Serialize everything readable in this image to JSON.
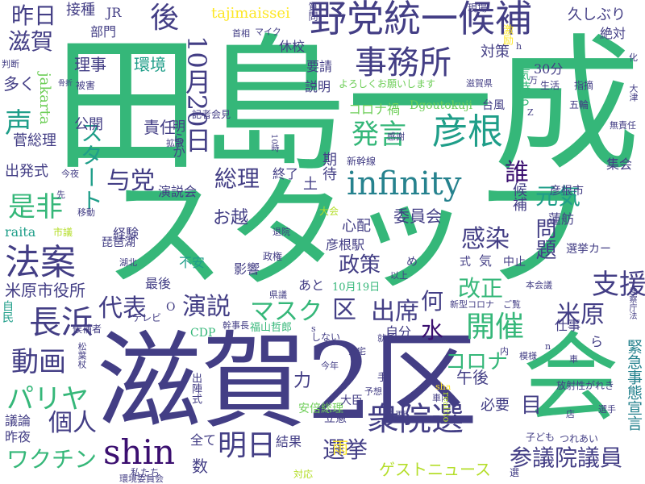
{
  "palette": {
    "c1": "#3b0f70",
    "c2": "#433e85",
    "c3": "#31688e",
    "c4": "#26828e",
    "c5": "#1f9e89",
    "c6": "#35b779",
    "c7": "#6ece58",
    "c8": "#b5de2b",
    "c9": "#fde725"
  },
  "words": [
    {
      "text": "田島一成",
      "color": "#35b779"
    },
    {
      "text": "スタッフ",
      "color": "#35b779"
    },
    {
      "text": "滋賀2区",
      "color": "#433e85"
    },
    {
      "text": "会",
      "color": "#35b779"
    },
    {
      "text": "野党統一候補",
      "color": "#433e85"
    },
    {
      "text": "事務所",
      "color": "#433e85"
    },
    {
      "text": "彦根",
      "color": "#1f9e89"
    },
    {
      "text": "infinity",
      "color": "#26828e"
    },
    {
      "text": "法案",
      "color": "#433e85"
    },
    {
      "text": "長浜",
      "color": "#433e85"
    },
    {
      "text": "衆院選",
      "color": "#433e85"
    },
    {
      "text": "明日",
      "color": "#433e85"
    },
    {
      "text": "shin",
      "color": "#3b0f70"
    },
    {
      "text": "開催",
      "color": "#35b779"
    },
    {
      "text": "10月20日",
      "color": "#433e85"
    },
    {
      "text": "発言",
      "color": "#35b779"
    },
    {
      "text": "後",
      "color": "#433e85"
    },
    {
      "text": "昨日",
      "color": "#433e85"
    },
    {
      "text": "滋賀",
      "color": "#433e85"
    },
    {
      "text": "声",
      "color": "#1f9e89"
    },
    {
      "text": "是非",
      "color": "#35b779"
    },
    {
      "text": "動画",
      "color": "#433e85"
    },
    {
      "text": "パリヤ",
      "color": "#35b779"
    },
    {
      "text": "ワクチン",
      "color": "#35b779"
    },
    {
      "text": "個人",
      "color": "#433e85"
    },
    {
      "text": "選挙",
      "color": "#433e85"
    },
    {
      "text": "参議院議員",
      "color": "#433e85"
    },
    {
      "text": "支援",
      "color": "#433e85"
    },
    {
      "text": "米原",
      "color": "#433e85"
    },
    {
      "text": "感染",
      "color": "#433e85"
    },
    {
      "text": "総理",
      "color": "#433e85"
    },
    {
      "text": "与党",
      "color": "#433e85"
    },
    {
      "text": "演説",
      "color": "#433e85"
    },
    {
      "text": "マスク",
      "color": "#35b779"
    },
    {
      "text": "区",
      "color": "#433e85"
    },
    {
      "text": "出席",
      "color": "#433e85"
    },
    {
      "text": "代表",
      "color": "#433e85"
    },
    {
      "text": "改正",
      "color": "#35b779"
    },
    {
      "text": "政策",
      "color": "#433e85"
    },
    {
      "text": "コロナ",
      "color": "#35b779"
    },
    {
      "text": "元気",
      "color": "#1f9e89"
    },
    {
      "text": "誰",
      "color": "#3b0f70"
    },
    {
      "text": "問題",
      "color": "#433e85"
    },
    {
      "text": "スタート",
      "color": "#1f9e89"
    },
    {
      "text": "何",
      "color": "#433e85"
    },
    {
      "text": "水",
      "color": "#3b0f70"
    },
    {
      "text": "目",
      "color": "#433e85"
    },
    {
      "text": "雨",
      "color": "#fde725"
    },
    {
      "text": "緊急事態宣言",
      "color": "#26828e"
    },
    {
      "text": "ゲストニュース",
      "color": "#b5de2b"
    },
    {
      "text": "tajimaissei",
      "color": "#fde725"
    },
    {
      "text": "接種",
      "color": "#433e85"
    },
    {
      "text": "JR",
      "color": "#433e85"
    },
    {
      "text": "部門",
      "color": "#433e85"
    },
    {
      "text": "休校",
      "color": "#433e85"
    },
    {
      "text": "要請",
      "color": "#433e85"
    },
    {
      "text": "対策",
      "color": "#433e85"
    },
    {
      "text": "久しぶり",
      "color": "#433e85"
    },
    {
      "text": "絶対",
      "color": "#433e85"
    },
    {
      "text": "30分",
      "color": "#433e85"
    },
    {
      "text": "理事",
      "color": "#433e85"
    },
    {
      "text": "環境",
      "color": "#1f9e89"
    },
    {
      "text": "説明",
      "color": "#433e85"
    },
    {
      "text": "よろしくお願いします",
      "color": "#6ece58"
    },
    {
      "text": "コロナ禍",
      "color": "#6ece58"
    },
    {
      "text": "Dgoutokuji",
      "color": "#6ece58"
    },
    {
      "text": "台風",
      "color": "#433e85"
    },
    {
      "text": "気持ち",
      "color": "#35b779"
    },
    {
      "text": "多く",
      "color": "#433e85"
    },
    {
      "text": "jakarta",
      "color": "#6ece58"
    },
    {
      "text": "公開",
      "color": "#433e85"
    },
    {
      "text": "責任",
      "color": "#433e85"
    },
    {
      "text": "菅総理",
      "color": "#433e85"
    },
    {
      "text": "明らか",
      "color": "#433e85"
    },
    {
      "text": "出発式",
      "color": "#433e85"
    },
    {
      "text": "演説会",
      "color": "#433e85"
    },
    {
      "text": "お越",
      "color": "#433e85"
    },
    {
      "text": "土",
      "color": "#433e85"
    },
    {
      "text": "終了",
      "color": "#433e85"
    },
    {
      "text": "期待",
      "color": "#433e85"
    },
    {
      "text": "候補",
      "color": "#433e85"
    },
    {
      "text": "彦根市",
      "color": "#433e85"
    },
    {
      "text": "集会",
      "color": "#433e85"
    },
    {
      "text": "委員会",
      "color": "#433e85"
    },
    {
      "text": "心配",
      "color": "#433e85"
    },
    {
      "text": "蓮舫",
      "color": "#433e85"
    },
    {
      "text": "彦根駅",
      "color": "#433e85"
    },
    {
      "text": "選挙カー",
      "color": "#433e85"
    },
    {
      "text": "raita",
      "color": "#1f9e89"
    },
    {
      "text": "経験",
      "color": "#433e85"
    },
    {
      "text": "不安",
      "color": "#1f9e89"
    },
    {
      "text": "影響",
      "color": "#433e85"
    },
    {
      "text": "最後",
      "color": "#433e85"
    },
    {
      "text": "あと",
      "color": "#433e85"
    },
    {
      "text": "中止",
      "color": "#433e85"
    },
    {
      "text": "10月19日",
      "color": "#35b779"
    },
    {
      "text": "米原市役所",
      "color": "#433e85"
    },
    {
      "text": "仕事",
      "color": "#433e85"
    },
    {
      "text": "自分",
      "color": "#433e85"
    },
    {
      "text": "午後",
      "color": "#433e85"
    },
    {
      "text": "力",
      "color": "#433e85"
    },
    {
      "text": "必要",
      "color": "#433e85"
    },
    {
      "text": "議論",
      "color": "#433e85"
    },
    {
      "text": "昨夜",
      "color": "#433e85"
    },
    {
      "text": "全て",
      "color": "#433e85"
    },
    {
      "text": "結果",
      "color": "#433e85"
    },
    {
      "text": "数",
      "color": "#433e85"
    },
    {
      "text": "安倍総理",
      "color": "#6ece58"
    },
    {
      "text": "大臣",
      "color": "#433e85"
    },
    {
      "text": "投票",
      "color": "#433e85"
    },
    {
      "text": "福山哲郎",
      "color": "#35b779"
    },
    {
      "text": "CDP",
      "color": "#35b779"
    },
    {
      "text": "琵琶湖",
      "color": "#433e85"
    },
    {
      "text": "立憲",
      "color": "#433e85"
    },
    {
      "text": "新幹線",
      "color": "#433e85"
    },
    {
      "text": "記者会見",
      "color": "#433e85"
    },
    {
      "text": "放射性がれき",
      "color": "#433e85"
    },
    {
      "text": "五輪",
      "color": "#433e85"
    },
    {
      "text": "私たち",
      "color": "#433e85"
    },
    {
      "text": "環境委員会",
      "color": "#433e85"
    },
    {
      "text": "対応",
      "color": "#b5de2b"
    },
    {
      "text": "子ども",
      "color": "#433e85"
    },
    {
      "text": "つれあい",
      "color": "#433e85"
    },
    {
      "text": "選",
      "color": "#433e85"
    },
    {
      "text": "被害",
      "color": "#433e85"
    },
    {
      "text": "現場",
      "color": "#433e85"
    },
    {
      "text": "首相",
      "color": "#433e85"
    },
    {
      "text": "マイク",
      "color": "#433e85"
    },
    {
      "text": "激励",
      "color": "#fde725"
    },
    {
      "text": "生活",
      "color": "#433e85"
    },
    {
      "text": "指摘",
      "color": "#433e85"
    },
    {
      "text": "滋賀県",
      "color": "#433e85"
    },
    {
      "text": "質問",
      "color": "#433e85"
    },
    {
      "text": "判断",
      "color": "#433e85"
    },
    {
      "text": "新型コロナ",
      "color": "#433e85"
    },
    {
      "text": "本会議",
      "color": "#433e85"
    },
    {
      "text": "幹事長",
      "color": "#433e85"
    },
    {
      "text": "テレビ",
      "color": "#433e85"
    },
    {
      "text": "候補者",
      "color": "#433e85"
    },
    {
      "text": "自民",
      "color": "#1f9e89"
    },
    {
      "text": "しない",
      "color": "#433e85"
    },
    {
      "text": "今年",
      "color": "#433e85"
    },
    {
      "text": "移動",
      "color": "#433e85"
    },
    {
      "text": "退院",
      "color": "#433e85"
    },
    {
      "text": "市議",
      "color": "#b5de2b"
    },
    {
      "text": "大会",
      "color": "#b5de2b"
    },
    {
      "text": "政権",
      "color": "#433e85"
    },
    {
      "text": "湖北",
      "color": "#433e85"
    },
    {
      "text": "拡散",
      "color": "#433e85"
    },
    {
      "text": "今夜",
      "color": "#433e85"
    },
    {
      "text": "先",
      "color": "#433e85"
    },
    {
      "text": "感謝",
      "color": "#433e85"
    },
    {
      "text": "ご覧",
      "color": "#433e85"
    },
    {
      "text": "就任",
      "color": "#433e85"
    },
    {
      "text": "以上",
      "color": "#433e85"
    },
    {
      "text": "県議",
      "color": "#433e85"
    },
    {
      "text": "予想",
      "color": "#433e85"
    },
    {
      "text": "車内",
      "color": "#433e85"
    },
    {
      "text": "帰宅",
      "color": "#433e85"
    },
    {
      "text": "選手",
      "color": "#433e85"
    },
    {
      "text": "模様",
      "color": "#433e85"
    },
    {
      "text": "大津",
      "color": "#433e85"
    },
    {
      "text": "無責任",
      "color": "#433e85"
    },
    {
      "text": "松葉杖",
      "color": "#433e85"
    },
    {
      "text": "手",
      "color": "#433e85"
    },
    {
      "text": "店",
      "color": "#433e85"
    },
    {
      "text": "車",
      "color": "#433e85"
    },
    {
      "text": "内",
      "color": "#433e85"
    },
    {
      "text": "式",
      "color": "#433e85"
    },
    {
      "text": "気",
      "color": "#433e85"
    },
    {
      "text": "ら",
      "color": "#433e85"
    },
    {
      "text": "め",
      "color": "#433e85"
    },
    {
      "text": "万",
      "color": "#433e85"
    },
    {
      "text": "Z",
      "color": "#433e85"
    },
    {
      "text": "h",
      "color": "#433e85"
    },
    {
      "text": "O",
      "color": "#433e85"
    },
    {
      "text": "n",
      "color": "#433e85"
    },
    {
      "text": "s",
      "color": "#433e85"
    },
    {
      "text": "sha",
      "color": "#fde725"
    },
    {
      "text": "realtto",
      "color": "#b5de2b"
    },
    {
      "text": "出陣式",
      "color": "#433e85"
    },
    {
      "text": "骨折",
      "color": "#433e85"
    },
    {
      "text": "検察庁法",
      "color": "#433e85"
    },
    {
      "text": "化",
      "color": "#433e85"
    },
    {
      "text": "10時",
      "color": "#433e85"
    }
  ]
}
